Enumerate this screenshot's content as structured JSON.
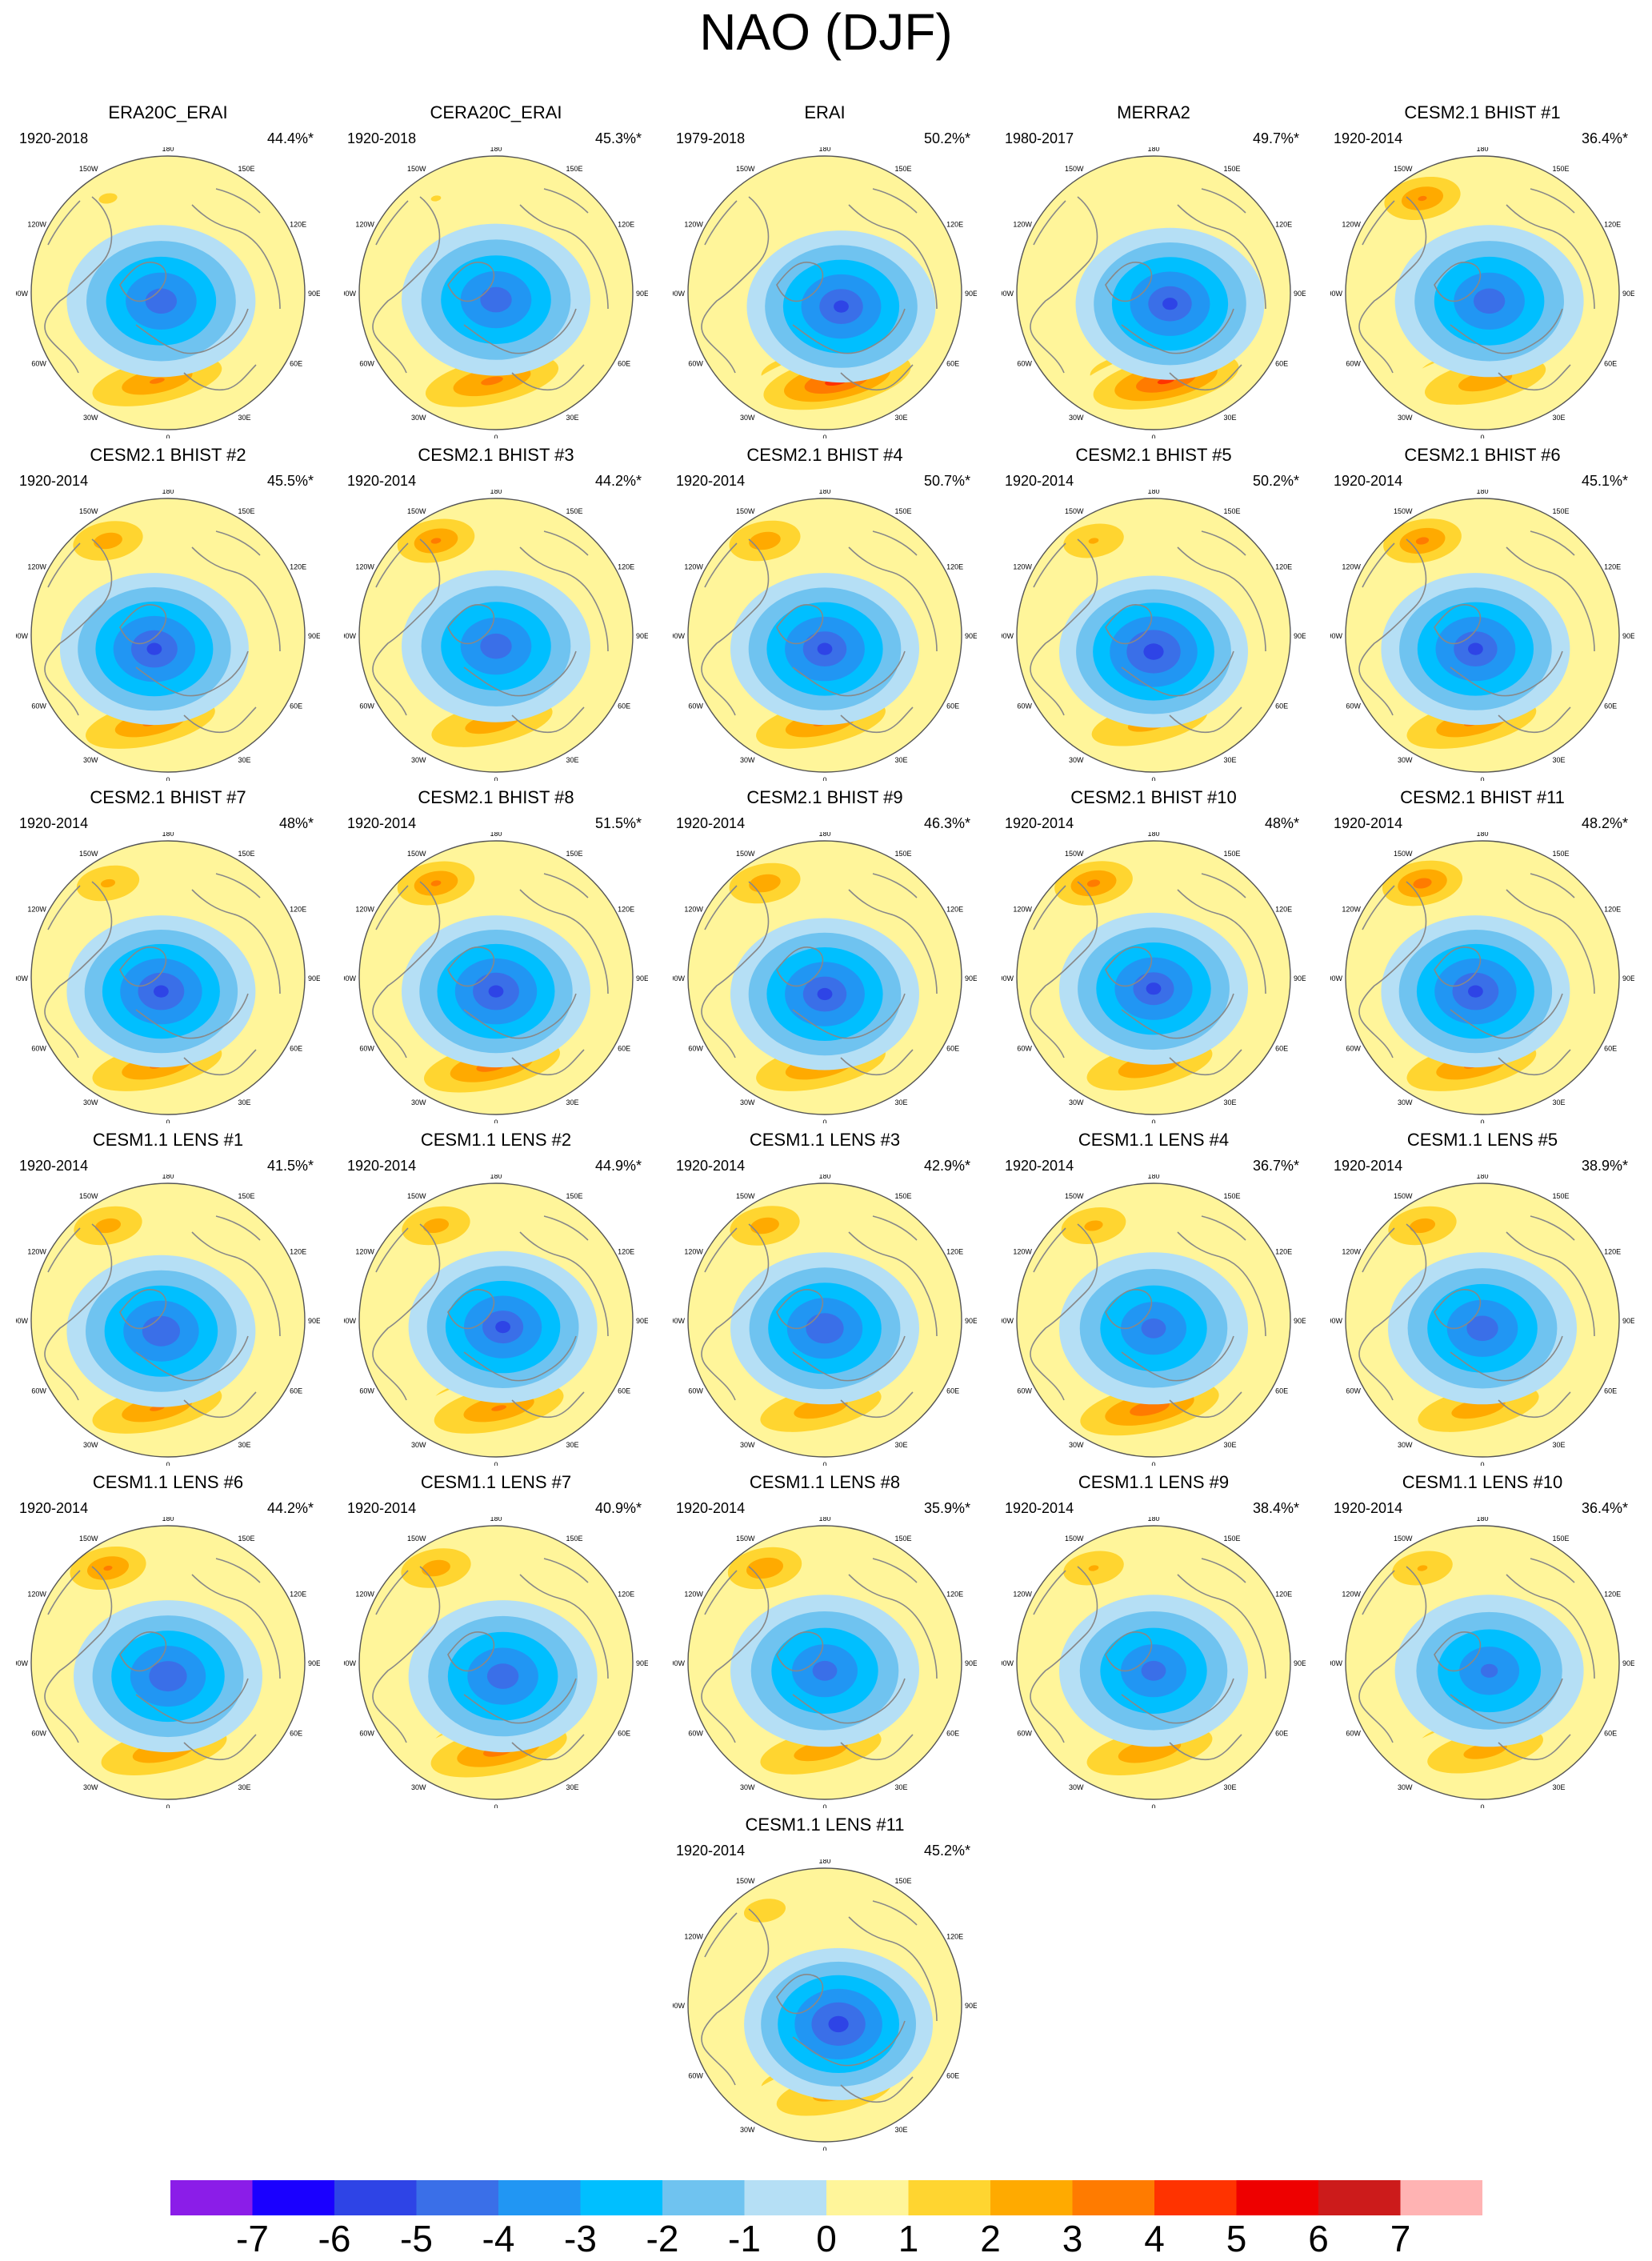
{
  "title": "NAO (DJF)",
  "colors": {
    "ocean_neutral": "#fff59a",
    "coast": "#888888"
  },
  "chart_data": {
    "type": "polar stereographic contour map panels (Northern Hemisphere)",
    "field": "NAO (DJF)",
    "map_labels": {
      "north": "180",
      "south": "0",
      "left": "90W",
      "right": "90E",
      "upper_left": "120W",
      "upper_right": "120E",
      "lower_left": "60W",
      "lower_right": "60E",
      "top_left": "150W",
      "top_right": "150E",
      "bottom_left": "30W",
      "bottom_right": "30E"
    },
    "colorbar": {
      "ticks": [
        "-7",
        "-6",
        "-5",
        "-4",
        "-3",
        "-2",
        "-1",
        "0",
        "1",
        "2",
        "3",
        "4",
        "5",
        "6",
        "7"
      ],
      "colors": [
        "#8b1de8",
        "#1a00ff",
        "#2e44e6",
        "#3a6fe8",
        "#2196f3",
        "#00bfff",
        "#6fc3f0",
        "#b5dff5",
        "#fff59a",
        "#ffd530",
        "#ffaa00",
        "#ff7b00",
        "#ff3300",
        "#ee0000",
        "#cc1b1b",
        "#ffb3b3"
      ]
    },
    "panels": [
      {
        "name": "ERA20C_ERAI",
        "period": "1920-2018",
        "variance": "44.4%*",
        "neg": 4.8,
        "pos": 3.2,
        "pac": 1.2,
        "lowx": -0.05,
        "lowy": 0.06
      },
      {
        "name": "CERA20C_ERAI",
        "period": "1920-2018",
        "variance": "45.3%*",
        "neg": 4.8,
        "pos": 3.4,
        "pac": 1.1,
        "lowx": 0.0,
        "lowy": 0.05
      },
      {
        "name": "ERAI",
        "period": "1979-2018",
        "variance": "50.2%*",
        "neg": 5.2,
        "pos": 4.6,
        "pac": 0.5,
        "lowx": 0.12,
        "lowy": 0.1
      },
      {
        "name": "MERRA2",
        "period": "1980-2017",
        "variance": "49.7%*",
        "neg": 5.2,
        "pos": 4.4,
        "pac": 0.5,
        "lowx": 0.12,
        "lowy": 0.08
      },
      {
        "name": "CESM2.1 BHIST #1",
        "period": "1920-2014",
        "variance": "36.4%*",
        "neg": 4.8,
        "pos": 2.8,
        "pac": 3.2,
        "lowx": 0.05,
        "lowy": 0.06
      },
      {
        "name": "CESM2.1 BHIST #2",
        "period": "1920-2014",
        "variance": "45.5%*",
        "neg": 5.3,
        "pos": 3.2,
        "pac": 2.7,
        "lowx": -0.1,
        "lowy": 0.1
      },
      {
        "name": "CESM2.1 BHIST #3",
        "period": "1920-2014",
        "variance": "44.2%*",
        "neg": 4.8,
        "pos": 2.8,
        "pac": 3.3,
        "lowx": 0.0,
        "lowy": 0.08
      },
      {
        "name": "CESM2.1 BHIST #4",
        "period": "1920-2014",
        "variance": "50.7%*",
        "neg": 5.2,
        "pos": 3.2,
        "pac": 2.8,
        "lowx": 0.0,
        "lowy": 0.1
      },
      {
        "name": "CESM2.1 BHIST #5",
        "period": "1920-2014",
        "variance": "50.2%*",
        "neg": 5.6,
        "pos": 2.6,
        "pac": 2.2,
        "lowx": 0.0,
        "lowy": 0.12
      },
      {
        "name": "CESM2.1 BHIST #6",
        "period": "1920-2014",
        "variance": "45.1%*",
        "neg": 5.2,
        "pos": 3.2,
        "pac": 3.4,
        "lowx": -0.05,
        "lowy": 0.1
      },
      {
        "name": "CESM2.1 BHIST #7",
        "period": "1920-2014",
        "variance": "48%*",
        "neg": 5.3,
        "pos": 3.2,
        "pac": 2.3,
        "lowx": -0.05,
        "lowy": 0.1
      },
      {
        "name": "CESM2.1 BHIST #8",
        "period": "1920-2014",
        "variance": "51.5%*",
        "neg": 5.3,
        "pos": 3.6,
        "pac": 3.3,
        "lowx": 0.0,
        "lowy": 0.1
      },
      {
        "name": "CESM2.1 BHIST #9",
        "period": "1920-2014",
        "variance": "46.3%*",
        "neg": 5.2,
        "pos": 3.2,
        "pac": 2.8,
        "lowx": 0.0,
        "lowy": 0.12
      },
      {
        "name": "CESM2.1 BHIST #10",
        "period": "1920-2014",
        "variance": "48%*",
        "neg": 5.1,
        "pos": 3.0,
        "pac": 3.4,
        "lowx": 0.0,
        "lowy": 0.08
      },
      {
        "name": "CESM2.1 BHIST #11",
        "period": "1920-2014",
        "variance": "48.2%*",
        "neg": 5.3,
        "pos": 3.2,
        "pac": 3.6,
        "lowx": -0.05,
        "lowy": 0.1
      },
      {
        "name": "CESM1.1 LENS #1",
        "period": "1920-2014",
        "variance": "41.5%*",
        "neg": 5.0,
        "pos": 3.2,
        "pac": 2.6,
        "lowx": -0.05,
        "lowy": 0.08
      },
      {
        "name": "CESM1.1 LENS #2",
        "period": "1920-2014",
        "variance": "44.9%*",
        "neg": 5.1,
        "pos": 3.2,
        "pac": 2.6,
        "lowx": 0.05,
        "lowy": 0.05
      },
      {
        "name": "CESM1.1 LENS #3",
        "period": "1920-2014",
        "variance": "42.9%*",
        "neg": 5.0,
        "pos": 2.8,
        "pac": 2.7,
        "lowx": 0.0,
        "lowy": 0.06
      },
      {
        "name": "CESM1.1 LENS #4",
        "period": "1920-2014",
        "variance": "36.7%*",
        "neg": 4.6,
        "pos": 3.8,
        "pac": 2.4,
        "lowx": 0.0,
        "lowy": 0.06
      },
      {
        "name": "CESM1.1 LENS #5",
        "period": "1920-2014",
        "variance": "38.9%*",
        "neg": 4.8,
        "pos": 2.8,
        "pac": 2.6,
        "lowx": 0.0,
        "lowy": 0.06
      },
      {
        "name": "CESM1.1 LENS #6",
        "period": "1920-2014",
        "variance": "44.2%*",
        "neg": 5.0,
        "pos": 3.0,
        "pac": 3.2,
        "lowx": 0.0,
        "lowy": 0.1
      },
      {
        "name": "CESM1.1 LENS #7",
        "period": "1920-2014",
        "variance": "40.9%*",
        "neg": 4.8,
        "pos": 3.6,
        "pac": 2.7,
        "lowx": 0.05,
        "lowy": 0.1
      },
      {
        "name": "CESM1.1 LENS #8",
        "period": "1920-2014",
        "variance": "35.9%*",
        "neg": 4.6,
        "pos": 2.8,
        "pac": 3.0,
        "lowx": 0.0,
        "lowy": 0.06
      },
      {
        "name": "CESM1.1 LENS #9",
        "period": "1920-2014",
        "variance": "38.4%*",
        "neg": 4.6,
        "pos": 3.0,
        "pac": 2.2,
        "lowx": 0.0,
        "lowy": 0.06
      },
      {
        "name": "CESM1.1 LENS #10",
        "period": "1920-2014",
        "variance": "36.4%*",
        "neg": 4.4,
        "pos": 2.6,
        "pac": 2.2,
        "lowx": 0.05,
        "lowy": 0.06
      },
      {
        "name": "CESM1.1 LENS #11",
        "period": "1920-2014",
        "variance": "45.2%*",
        "neg": 5.6,
        "pos": 2.6,
        "pac": 1.6,
        "lowx": 0.1,
        "lowy": 0.14
      }
    ]
  }
}
